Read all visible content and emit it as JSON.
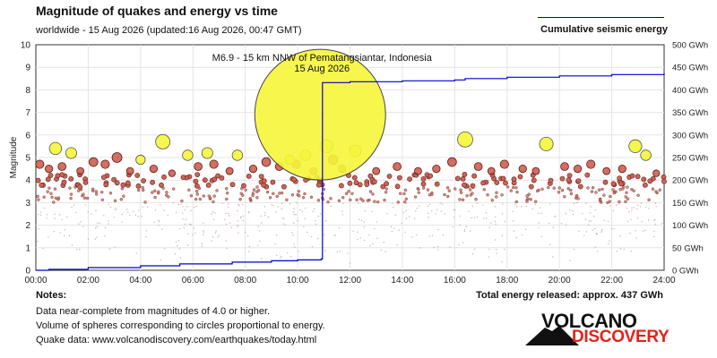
{
  "header": {
    "title": "Magnitude of quakes and energy vs time",
    "subtitle": "worldwide - 15 Aug 2026 (updated:16 Aug 2026, 00:47 GMT)",
    "legend_label": "Cumulative seismic energy"
  },
  "notes": {
    "title": "Notes:",
    "line1": "Data near-complete from magnitudes of 4.0 or higher.",
    "line2": "Volume of spheres corresponding to circles proportional to energy.",
    "line3": "Quake data: www.volcanodiscovery.com/earthquakes/today.html",
    "total": "Total energy released: approx. 437 GWh"
  },
  "logo": {
    "top": "VOLCANO",
    "bottom": "DISCOVERY"
  },
  "colors": {
    "energy_line": "#0000cc",
    "large_quake": "#f5f53a",
    "medium_quake": "#c84a3c",
    "small_quake": "#b0605a"
  },
  "chart_data": {
    "type": "scatter",
    "ylabel": "Magnitude",
    "x_ticks": [
      "00:00",
      "02:00",
      "04:00",
      "06:00",
      "08:00",
      "10:00",
      "12:00",
      "14:00",
      "16:00",
      "18:00",
      "20:00",
      "22:00",
      "24:00"
    ],
    "y_left_ticks": [
      "0",
      "1",
      "2",
      "3",
      "4",
      "5",
      "6",
      "7",
      "8",
      "9",
      "10"
    ],
    "y_right_ticks": [
      "0 GWh",
      "50 GWh",
      "100 GWh",
      "150 GWh",
      "200 GWh",
      "250 GWh",
      "300 GWh",
      "350 GWh",
      "400 GWh",
      "450 GWh",
      "500 GWh"
    ],
    "xlim_hours": [
      0,
      24
    ],
    "ylim_magnitude": [
      0,
      10
    ],
    "ylim_energy_gwh": [
      0,
      500
    ],
    "grid": true,
    "annotation": {
      "line1": "M6.9 - 15 km NNW of Pematangsiantar, Indonesia",
      "line2": "15 Aug 2026",
      "time_hours": 10.93,
      "magnitude": 6.9
    },
    "large_quakes": [
      {
        "time_hours": 0.75,
        "magnitude": 5.4
      },
      {
        "time_hours": 1.35,
        "magnitude": 5.2
      },
      {
        "time_hours": 4.0,
        "magnitude": 4.9
      },
      {
        "time_hours": 4.85,
        "magnitude": 5.7
      },
      {
        "time_hours": 5.8,
        "magnitude": 5.1
      },
      {
        "time_hours": 6.55,
        "magnitude": 5.2
      },
      {
        "time_hours": 7.7,
        "magnitude": 5.1
      },
      {
        "time_hours": 9.7,
        "magnitude": 4.9
      },
      {
        "time_hours": 10.3,
        "magnitude": 5.1
      },
      {
        "time_hours": 11.1,
        "magnitude": 5.5
      },
      {
        "time_hours": 12.2,
        "magnitude": 5.3
      },
      {
        "time_hours": 16.4,
        "magnitude": 5.8
      },
      {
        "time_hours": 19.5,
        "magnitude": 5.6
      },
      {
        "time_hours": 22.9,
        "magnitude": 5.5
      },
      {
        "time_hours": 23.3,
        "magnitude": 5.1
      }
    ],
    "medium_quakes": [
      {
        "time_hours": 0.15,
        "magnitude": 4.7
      },
      {
        "time_hours": 0.5,
        "magnitude": 4.5
      },
      {
        "time_hours": 1.0,
        "magnitude": 4.6
      },
      {
        "time_hours": 1.7,
        "magnitude": 4.4
      },
      {
        "time_hours": 2.2,
        "magnitude": 4.8
      },
      {
        "time_hours": 2.65,
        "magnitude": 4.7
      },
      {
        "time_hours": 3.1,
        "magnitude": 5.0
      },
      {
        "time_hours": 3.6,
        "magnitude": 4.4
      },
      {
        "time_hours": 4.5,
        "magnitude": 4.5
      },
      {
        "time_hours": 5.2,
        "magnitude": 4.3
      },
      {
        "time_hours": 6.2,
        "magnitude": 4.6
      },
      {
        "time_hours": 6.8,
        "magnitude": 4.7
      },
      {
        "time_hours": 7.4,
        "magnitude": 4.4
      },
      {
        "time_hours": 8.3,
        "magnitude": 4.5
      },
      {
        "time_hours": 8.8,
        "magnitude": 4.8
      },
      {
        "time_hours": 9.3,
        "magnitude": 4.6
      },
      {
        "time_hours": 9.95,
        "magnitude": 4.7
      },
      {
        "time_hours": 10.6,
        "magnitude": 4.4
      },
      {
        "time_hours": 11.35,
        "magnitude": 4.9
      },
      {
        "time_hours": 11.7,
        "magnitude": 4.5
      },
      {
        "time_hours": 13.0,
        "magnitude": 4.4
      },
      {
        "time_hours": 13.8,
        "magnitude": 4.6
      },
      {
        "time_hours": 14.6,
        "magnitude": 4.4
      },
      {
        "time_hours": 15.3,
        "magnitude": 4.5
      },
      {
        "time_hours": 15.9,
        "magnitude": 4.8
      },
      {
        "time_hours": 16.9,
        "magnitude": 4.6
      },
      {
        "time_hours": 17.4,
        "magnitude": 4.4
      },
      {
        "time_hours": 17.9,
        "magnitude": 4.7
      },
      {
        "time_hours": 18.6,
        "magnitude": 4.5
      },
      {
        "time_hours": 19.1,
        "magnitude": 4.4
      },
      {
        "time_hours": 20.2,
        "magnitude": 4.6
      },
      {
        "time_hours": 20.7,
        "magnitude": 4.5
      },
      {
        "time_hours": 21.2,
        "magnitude": 4.7
      },
      {
        "time_hours": 21.8,
        "magnitude": 4.4
      },
      {
        "time_hours": 22.4,
        "magnitude": 4.5
      },
      {
        "time_hours": 23.7,
        "magnitude": 4.3
      }
    ],
    "energy_series": {
      "name": "Cumulative seismic energy",
      "time_hours": [
        0,
        0.5,
        2.0,
        4.0,
        5.5,
        7.5,
        9.0,
        10.0,
        10.9,
        10.95,
        12.0,
        14.0,
        16.0,
        16.4,
        18.0,
        20.0,
        22.0,
        24.0
      ],
      "energy_gwh": [
        0,
        2,
        6,
        10,
        14,
        18,
        21,
        23,
        25,
        416,
        418,
        420,
        422,
        425,
        428,
        431,
        434,
        437
      ]
    }
  }
}
